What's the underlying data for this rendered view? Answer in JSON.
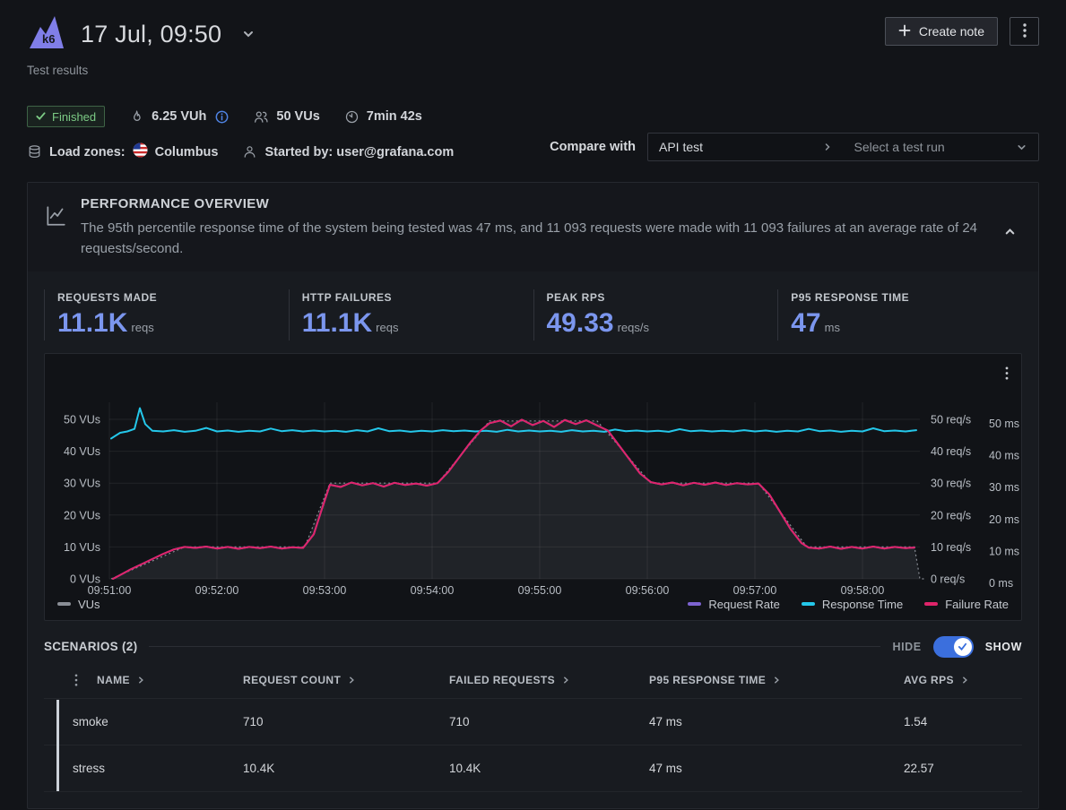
{
  "header": {
    "logo_text": "k6",
    "title": "17 Jul, 09:50",
    "subtitle": "Test results",
    "create_note_label": "Create note"
  },
  "status": {
    "badge": "Finished",
    "vuh": "6.25 VUh",
    "vus": "50 VUs",
    "duration": "7min 42s",
    "load_zones_label": "Load zones:",
    "load_zone": "Columbus",
    "started_by": "Started by: user@grafana.com"
  },
  "compare": {
    "label": "Compare with",
    "test_name": "API test",
    "placeholder": "Select a test run"
  },
  "overview": {
    "title": "PERFORMANCE OVERVIEW",
    "description": "The 95th percentile response time of the system being tested was 47 ms, and 11 093 requests were made with 11 093 failures at an average rate of 24 requests/second."
  },
  "stats": [
    {
      "label": "REQUESTS MADE",
      "value": "11.1K",
      "unit": "reqs"
    },
    {
      "label": "HTTP FAILURES",
      "value": "11.1K",
      "unit": "reqs"
    },
    {
      "label": "PEAK RPS",
      "value": "49.33",
      "unit": "reqs/s"
    },
    {
      "label": "P95 RESPONSE TIME",
      "value": "47",
      "unit": "ms"
    }
  ],
  "chart_data": {
    "type": "line",
    "x_ticks": [
      "09:51:00",
      "09:52:00",
      "09:53:00",
      "09:54:00",
      "09:55:00",
      "09:56:00",
      "09:57:00",
      "09:58:00"
    ],
    "x_tick_interval_seconds": 60,
    "axes": {
      "left": {
        "unit": "VUs",
        "ticks": [
          0,
          10,
          20,
          30,
          40,
          50
        ],
        "max": 50
      },
      "right1": {
        "unit": "req/s",
        "ticks": [
          0,
          10,
          20,
          30,
          40,
          50
        ],
        "max": 50
      },
      "right2": {
        "unit": "ms",
        "ticks": [
          0,
          10,
          20,
          30,
          40,
          50
        ],
        "max": 50
      }
    },
    "grid": true,
    "legend_position": "bottom",
    "series": [
      {
        "name": "VUs",
        "type": "area",
        "axis": "left",
        "color": "#8a8e96",
        "fill": "rgba(150,155,165,0.12)",
        "points": [
          [
            1,
            0
          ],
          [
            42,
            10
          ],
          [
            109,
            10
          ],
          [
            123,
            30
          ],
          [
            183,
            30
          ],
          [
            212,
            49.5
          ],
          [
            272,
            49.5
          ],
          [
            302,
            30
          ],
          [
            362,
            30
          ],
          [
            389,
            10
          ],
          [
            449,
            10
          ],
          [
            452,
            0
          ],
          [
            455,
            0
          ]
        ]
      },
      {
        "name": "Request Rate",
        "type": "line",
        "axis": "right1",
        "color": "#7d63d1",
        "points_ref": "Failure Rate"
      },
      {
        "name": "Response Time",
        "type": "line",
        "axis": "right2",
        "color": "#24c7ea",
        "points": [
          [
            1,
            44
          ],
          [
            6,
            45.8
          ],
          [
            10,
            46.2
          ],
          [
            14,
            47
          ],
          [
            17,
            53.5
          ],
          [
            20,
            48.5
          ],
          [
            24,
            46.4
          ],
          [
            30,
            46.2
          ],
          [
            36,
            46.6
          ],
          [
            42,
            46.1
          ],
          [
            48,
            46.4
          ],
          [
            54,
            47.3
          ],
          [
            60,
            46.2
          ],
          [
            66,
            46.5
          ],
          [
            72,
            46.1
          ],
          [
            78,
            46.4
          ],
          [
            84,
            46.2
          ],
          [
            90,
            47.1
          ],
          [
            96,
            46.3
          ],
          [
            102,
            46.6
          ],
          [
            108,
            46.2
          ],
          [
            114,
            46.5
          ],
          [
            120,
            46.2
          ],
          [
            126,
            46.4
          ],
          [
            132,
            46.1
          ],
          [
            138,
            46.6
          ],
          [
            144,
            46.2
          ],
          [
            150,
            47.2
          ],
          [
            156,
            46.3
          ],
          [
            162,
            46.5
          ],
          [
            168,
            46.1
          ],
          [
            174,
            46.4
          ],
          [
            180,
            46.2
          ],
          [
            186,
            46.6
          ],
          [
            192,
            46.3
          ],
          [
            198,
            46.5
          ],
          [
            204,
            46.2
          ],
          [
            210,
            46.4
          ],
          [
            216,
            46.1
          ],
          [
            222,
            46.7
          ],
          [
            228,
            46.2
          ],
          [
            234,
            46.5
          ],
          [
            240,
            46.2
          ],
          [
            246,
            46.4
          ],
          [
            252,
            46.1
          ],
          [
            258,
            46.6
          ],
          [
            264,
            46.2
          ],
          [
            270,
            46.4
          ],
          [
            276,
            46.1
          ],
          [
            282,
            46.8
          ],
          [
            288,
            46.3
          ],
          [
            294,
            46.5
          ],
          [
            300,
            46.2
          ],
          [
            306,
            46.4
          ],
          [
            312,
            46.1
          ],
          [
            318,
            46.9
          ],
          [
            324,
            46.3
          ],
          [
            330,
            46.5
          ],
          [
            336,
            46.2
          ],
          [
            342,
            46.4
          ],
          [
            348,
            46.2
          ],
          [
            354,
            46.6
          ],
          [
            360,
            46.2
          ],
          [
            366,
            46.5
          ],
          [
            372,
            46.1
          ],
          [
            378,
            46.4
          ],
          [
            384,
            46.2
          ],
          [
            390,
            47
          ],
          [
            396,
            46.3
          ],
          [
            402,
            46.5
          ],
          [
            408,
            46.1
          ],
          [
            414,
            46.4
          ],
          [
            420,
            46.2
          ],
          [
            426,
            47.2
          ],
          [
            432,
            46.3
          ],
          [
            438,
            46.5
          ],
          [
            444,
            46.2
          ],
          [
            450,
            46.6
          ]
        ]
      },
      {
        "name": "Failure Rate",
        "type": "line",
        "axis": "right1",
        "color": "#e0246a",
        "points": [
          [
            2,
            0
          ],
          [
            6,
            1.2
          ],
          [
            12,
            3
          ],
          [
            18,
            4.6
          ],
          [
            24,
            6.2
          ],
          [
            30,
            7.8
          ],
          [
            36,
            9.2
          ],
          [
            42,
            10
          ],
          [
            48,
            9.7
          ],
          [
            54,
            10.1
          ],
          [
            60,
            9.5
          ],
          [
            66,
            10
          ],
          [
            72,
            9.4
          ],
          [
            78,
            10
          ],
          [
            84,
            9.6
          ],
          [
            90,
            10.1
          ],
          [
            96,
            9.5
          ],
          [
            102,
            9.9
          ],
          [
            108,
            9.7
          ],
          [
            114,
            14
          ],
          [
            118,
            21
          ],
          [
            123,
            29.5
          ],
          [
            129,
            28.8
          ],
          [
            135,
            30.2
          ],
          [
            141,
            29.3
          ],
          [
            147,
            30
          ],
          [
            153,
            28.9
          ],
          [
            159,
            30.1
          ],
          [
            165,
            29.4
          ],
          [
            171,
            29.9
          ],
          [
            177,
            29.2
          ],
          [
            183,
            30
          ],
          [
            189,
            33.5
          ],
          [
            195,
            38
          ],
          [
            201,
            42.5
          ],
          [
            207,
            46.5
          ],
          [
            212,
            48.8
          ],
          [
            218,
            49.6
          ],
          [
            224,
            47.8
          ],
          [
            230,
            49.9
          ],
          [
            236,
            48.2
          ],
          [
            242,
            49.5
          ],
          [
            248,
            47.6
          ],
          [
            254,
            49.8
          ],
          [
            260,
            48.5
          ],
          [
            266,
            49.7
          ],
          [
            272,
            48.1
          ],
          [
            278,
            46.5
          ],
          [
            284,
            42
          ],
          [
            290,
            37.5
          ],
          [
            296,
            33
          ],
          [
            302,
            30.3
          ],
          [
            308,
            29.6
          ],
          [
            314,
            30.2
          ],
          [
            320,
            29.3
          ],
          [
            326,
            30.1
          ],
          [
            332,
            29.5
          ],
          [
            338,
            30.2
          ],
          [
            344,
            29.4
          ],
          [
            350,
            30
          ],
          [
            356,
            29.6
          ],
          [
            362,
            29.9
          ],
          [
            368,
            26.5
          ],
          [
            374,
            21
          ],
          [
            380,
            15.5
          ],
          [
            386,
            11.2
          ],
          [
            390,
            9.8
          ],
          [
            396,
            9.5
          ],
          [
            402,
            10.1
          ],
          [
            408,
            9.4
          ],
          [
            414,
            10
          ],
          [
            420,
            9.5
          ],
          [
            426,
            10.1
          ],
          [
            432,
            9.5
          ],
          [
            438,
            10
          ],
          [
            444,
            9.6
          ],
          [
            449,
            9.8
          ]
        ]
      }
    ]
  },
  "scenarios": {
    "title": "SCENARIOS (2)",
    "hide_label": "HIDE",
    "show_label": "SHOW",
    "columns": [
      "NAME",
      "REQUEST COUNT",
      "FAILED REQUESTS",
      "P95 RESPONSE TIME",
      "AVG RPS"
    ],
    "rows": [
      [
        "smoke",
        "710",
        "710",
        "47 ms",
        "1.54"
      ],
      [
        "stress",
        "10.4K",
        "10.4K",
        "47 ms",
        "22.57"
      ]
    ]
  },
  "colors": {
    "accent_blue": "#7b96ee",
    "toggle_blue": "#3b6fdd",
    "finished_green": "#7ccb85",
    "background": "#121418",
    "panel": "#181b20"
  }
}
